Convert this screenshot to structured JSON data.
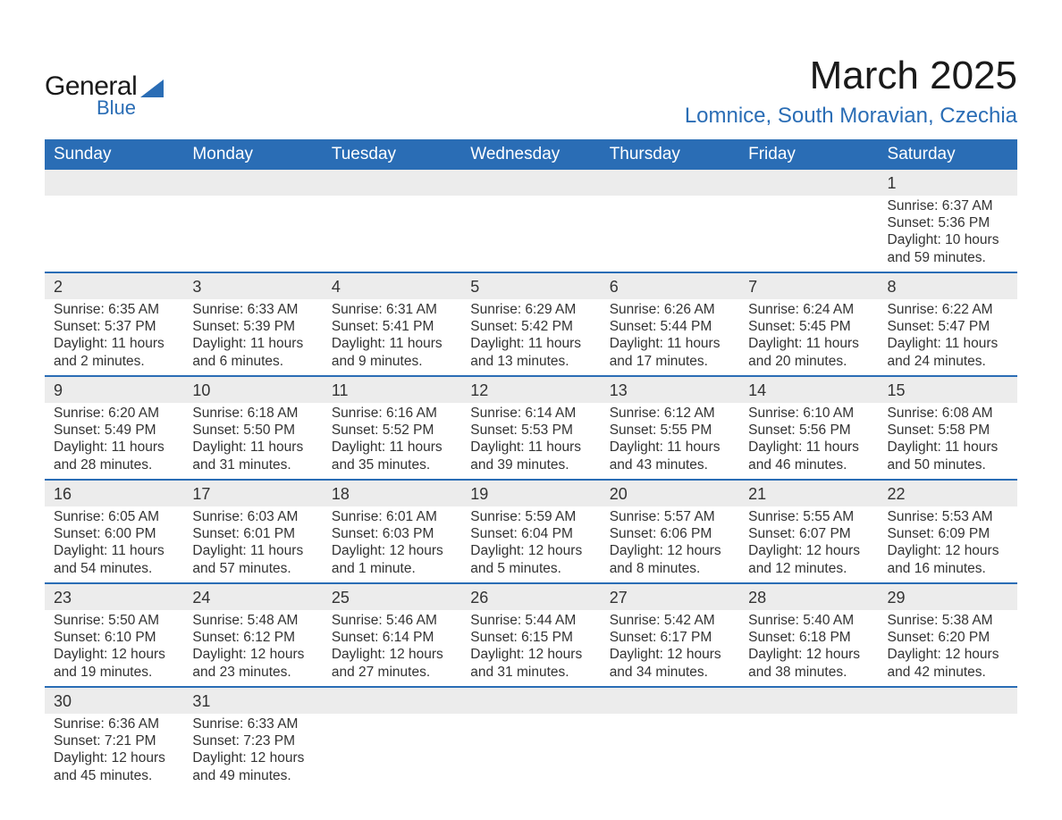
{
  "logo": {
    "general": "General",
    "blue": "Blue",
    "triangle_color": "#2a6db5"
  },
  "title": "March 2025",
  "location": "Lomnice, South Moravian, Czechia",
  "colors": {
    "header_bg": "#2a6db5",
    "header_text": "#ffffff",
    "daynum_bg": "#ececec",
    "row_divider": "#2a6db5",
    "body_text": "#333333",
    "page_bg": "#ffffff",
    "accent": "#2a6db5"
  },
  "day_headers": [
    "Sunday",
    "Monday",
    "Tuesday",
    "Wednesday",
    "Thursday",
    "Friday",
    "Saturday"
  ],
  "weeks": [
    {
      "nums": [
        "",
        "",
        "",
        "",
        "",
        "",
        "1"
      ],
      "cells": [
        {},
        {},
        {},
        {},
        {},
        {},
        {
          "sunrise": "Sunrise: 6:37 AM",
          "sunset": "Sunset: 5:36 PM",
          "dl1": "Daylight: 10 hours",
          "dl2": "and 59 minutes."
        }
      ]
    },
    {
      "nums": [
        "2",
        "3",
        "4",
        "5",
        "6",
        "7",
        "8"
      ],
      "cells": [
        {
          "sunrise": "Sunrise: 6:35 AM",
          "sunset": "Sunset: 5:37 PM",
          "dl1": "Daylight: 11 hours",
          "dl2": "and 2 minutes."
        },
        {
          "sunrise": "Sunrise: 6:33 AM",
          "sunset": "Sunset: 5:39 PM",
          "dl1": "Daylight: 11 hours",
          "dl2": "and 6 minutes."
        },
        {
          "sunrise": "Sunrise: 6:31 AM",
          "sunset": "Sunset: 5:41 PM",
          "dl1": "Daylight: 11 hours",
          "dl2": "and 9 minutes."
        },
        {
          "sunrise": "Sunrise: 6:29 AM",
          "sunset": "Sunset: 5:42 PM",
          "dl1": "Daylight: 11 hours",
          "dl2": "and 13 minutes."
        },
        {
          "sunrise": "Sunrise: 6:26 AM",
          "sunset": "Sunset: 5:44 PM",
          "dl1": "Daylight: 11 hours",
          "dl2": "and 17 minutes."
        },
        {
          "sunrise": "Sunrise: 6:24 AM",
          "sunset": "Sunset: 5:45 PM",
          "dl1": "Daylight: 11 hours",
          "dl2": "and 20 minutes."
        },
        {
          "sunrise": "Sunrise: 6:22 AM",
          "sunset": "Sunset: 5:47 PM",
          "dl1": "Daylight: 11 hours",
          "dl2": "and 24 minutes."
        }
      ]
    },
    {
      "nums": [
        "9",
        "10",
        "11",
        "12",
        "13",
        "14",
        "15"
      ],
      "cells": [
        {
          "sunrise": "Sunrise: 6:20 AM",
          "sunset": "Sunset: 5:49 PM",
          "dl1": "Daylight: 11 hours",
          "dl2": "and 28 minutes."
        },
        {
          "sunrise": "Sunrise: 6:18 AM",
          "sunset": "Sunset: 5:50 PM",
          "dl1": "Daylight: 11 hours",
          "dl2": "and 31 minutes."
        },
        {
          "sunrise": "Sunrise: 6:16 AM",
          "sunset": "Sunset: 5:52 PM",
          "dl1": "Daylight: 11 hours",
          "dl2": "and 35 minutes."
        },
        {
          "sunrise": "Sunrise: 6:14 AM",
          "sunset": "Sunset: 5:53 PM",
          "dl1": "Daylight: 11 hours",
          "dl2": "and 39 minutes."
        },
        {
          "sunrise": "Sunrise: 6:12 AM",
          "sunset": "Sunset: 5:55 PM",
          "dl1": "Daylight: 11 hours",
          "dl2": "and 43 minutes."
        },
        {
          "sunrise": "Sunrise: 6:10 AM",
          "sunset": "Sunset: 5:56 PM",
          "dl1": "Daylight: 11 hours",
          "dl2": "and 46 minutes."
        },
        {
          "sunrise": "Sunrise: 6:08 AM",
          "sunset": "Sunset: 5:58 PM",
          "dl1": "Daylight: 11 hours",
          "dl2": "and 50 minutes."
        }
      ]
    },
    {
      "nums": [
        "16",
        "17",
        "18",
        "19",
        "20",
        "21",
        "22"
      ],
      "cells": [
        {
          "sunrise": "Sunrise: 6:05 AM",
          "sunset": "Sunset: 6:00 PM",
          "dl1": "Daylight: 11 hours",
          "dl2": "and 54 minutes."
        },
        {
          "sunrise": "Sunrise: 6:03 AM",
          "sunset": "Sunset: 6:01 PM",
          "dl1": "Daylight: 11 hours",
          "dl2": "and 57 minutes."
        },
        {
          "sunrise": "Sunrise: 6:01 AM",
          "sunset": "Sunset: 6:03 PM",
          "dl1": "Daylight: 12 hours",
          "dl2": "and 1 minute."
        },
        {
          "sunrise": "Sunrise: 5:59 AM",
          "sunset": "Sunset: 6:04 PM",
          "dl1": "Daylight: 12 hours",
          "dl2": "and 5 minutes."
        },
        {
          "sunrise": "Sunrise: 5:57 AM",
          "sunset": "Sunset: 6:06 PM",
          "dl1": "Daylight: 12 hours",
          "dl2": "and 8 minutes."
        },
        {
          "sunrise": "Sunrise: 5:55 AM",
          "sunset": "Sunset: 6:07 PM",
          "dl1": "Daylight: 12 hours",
          "dl2": "and 12 minutes."
        },
        {
          "sunrise": "Sunrise: 5:53 AM",
          "sunset": "Sunset: 6:09 PM",
          "dl1": "Daylight: 12 hours",
          "dl2": "and 16 minutes."
        }
      ]
    },
    {
      "nums": [
        "23",
        "24",
        "25",
        "26",
        "27",
        "28",
        "29"
      ],
      "cells": [
        {
          "sunrise": "Sunrise: 5:50 AM",
          "sunset": "Sunset: 6:10 PM",
          "dl1": "Daylight: 12 hours",
          "dl2": "and 19 minutes."
        },
        {
          "sunrise": "Sunrise: 5:48 AM",
          "sunset": "Sunset: 6:12 PM",
          "dl1": "Daylight: 12 hours",
          "dl2": "and 23 minutes."
        },
        {
          "sunrise": "Sunrise: 5:46 AM",
          "sunset": "Sunset: 6:14 PM",
          "dl1": "Daylight: 12 hours",
          "dl2": "and 27 minutes."
        },
        {
          "sunrise": "Sunrise: 5:44 AM",
          "sunset": "Sunset: 6:15 PM",
          "dl1": "Daylight: 12 hours",
          "dl2": "and 31 minutes."
        },
        {
          "sunrise": "Sunrise: 5:42 AM",
          "sunset": "Sunset: 6:17 PM",
          "dl1": "Daylight: 12 hours",
          "dl2": "and 34 minutes."
        },
        {
          "sunrise": "Sunrise: 5:40 AM",
          "sunset": "Sunset: 6:18 PM",
          "dl1": "Daylight: 12 hours",
          "dl2": "and 38 minutes."
        },
        {
          "sunrise": "Sunrise: 5:38 AM",
          "sunset": "Sunset: 6:20 PM",
          "dl1": "Daylight: 12 hours",
          "dl2": "and 42 minutes."
        }
      ]
    },
    {
      "nums": [
        "30",
        "31",
        "",
        "",
        "",
        "",
        ""
      ],
      "cells": [
        {
          "sunrise": "Sunrise: 6:36 AM",
          "sunset": "Sunset: 7:21 PM",
          "dl1": "Daylight: 12 hours",
          "dl2": "and 45 minutes."
        },
        {
          "sunrise": "Sunrise: 6:33 AM",
          "sunset": "Sunset: 7:23 PM",
          "dl1": "Daylight: 12 hours",
          "dl2": "and 49 minutes."
        },
        {},
        {},
        {},
        {},
        {}
      ]
    }
  ]
}
